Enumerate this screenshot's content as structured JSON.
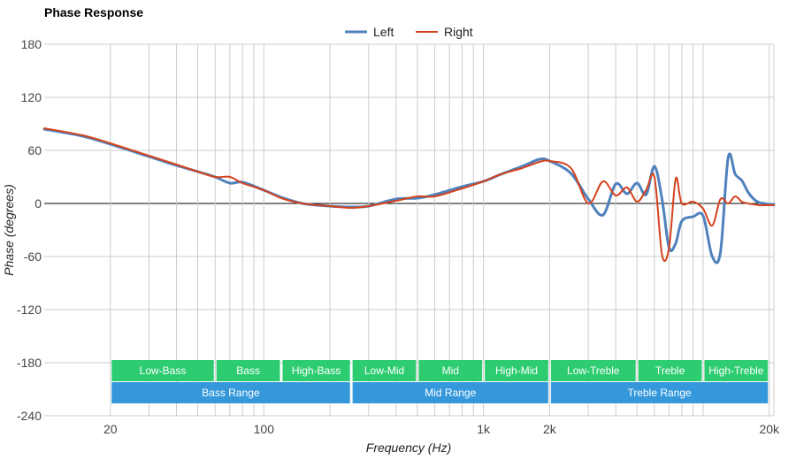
{
  "chart_data": {
    "type": "line",
    "title": "Phase Response",
    "xlabel": "Frequency (Hz)",
    "ylabel": "Phase (degrees)",
    "x_scale": "log",
    "xlim": [
      10,
      21000
    ],
    "ylim": [
      -240,
      180
    ],
    "x_ticks": [
      {
        "value": 20,
        "label": "20"
      },
      {
        "value": 100,
        "label": "100"
      },
      {
        "value": 1000,
        "label": "1k"
      },
      {
        "value": 2000,
        "label": "2k"
      },
      {
        "value": 20000,
        "label": "20k"
      }
    ],
    "y_ticks": [
      {
        "value": 180,
        "label": "180"
      },
      {
        "value": 120,
        "label": "120"
      },
      {
        "value": 60,
        "label": "60"
      },
      {
        "value": 0,
        "label": "0"
      },
      {
        "value": -60,
        "label": "-60"
      },
      {
        "value": -120,
        "label": "-120"
      },
      {
        "value": -180,
        "label": "-180"
      },
      {
        "value": -240,
        "label": "-240"
      }
    ],
    "grid": true,
    "legend_position": "top-center",
    "series": [
      {
        "name": "Left",
        "color": "#4f81bd",
        "x": [
          10,
          15,
          20,
          30,
          40,
          50,
          60,
          70,
          80,
          100,
          120,
          150,
          200,
          250,
          300,
          400,
          500,
          600,
          800,
          1000,
          1200,
          1500,
          1800,
          2000,
          2500,
          3000,
          3500,
          4000,
          4500,
          5000,
          5500,
          6000,
          6500,
          7000,
          7500,
          8000,
          9000,
          10000,
          11000,
          12000,
          13000,
          14000,
          15000,
          16000,
          17000,
          18000,
          19000,
          20000,
          21000
        ],
        "y": [
          84,
          76,
          67,
          53,
          43,
          36,
          30,
          23,
          24,
          15,
          7,
          0,
          -3,
          -4,
          -3,
          5,
          6,
          10,
          19,
          25,
          33,
          42,
          50,
          48,
          34,
          5,
          -13,
          22,
          11,
          23,
          10,
          42,
          5,
          -50,
          -45,
          -20,
          -15,
          -14,
          -60,
          -55,
          52,
          33,
          26,
          13,
          5,
          1,
          0,
          -1,
          -1
        ],
        "x_approx": true
      },
      {
        "name": "Right",
        "color": "#d4431d",
        "x": [
          10,
          15,
          20,
          30,
          40,
          50,
          60,
          70,
          80,
          100,
          120,
          150,
          200,
          250,
          300,
          400,
          500,
          600,
          800,
          1000,
          1200,
          1500,
          1800,
          2000,
          2500,
          3000,
          3500,
          4000,
          4500,
          5000,
          5500,
          6000,
          6500,
          7000,
          7500,
          8000,
          9000,
          10000,
          11000,
          12000,
          13000,
          14000,
          15000,
          16000,
          17000,
          18000,
          19000,
          20000,
          21000
        ],
        "y": [
          85,
          77,
          68,
          54,
          44,
          36,
          30,
          30,
          23,
          15,
          6,
          0,
          -3,
          -5,
          -3,
          3,
          8,
          8,
          17,
          25,
          33,
          40,
          47,
          48,
          40,
          0,
          25,
          9,
          18,
          2,
          15,
          30,
          -58,
          -50,
          28,
          0,
          2,
          -6,
          -25,
          5,
          0,
          8,
          2,
          0,
          -1,
          -2,
          -2,
          -2,
          -2
        ],
        "x_approx": true
      }
    ],
    "bands": {
      "fine": [
        {
          "label": "Low-Bass",
          "from": 20,
          "to": 60
        },
        {
          "label": "Bass",
          "from": 60,
          "to": 120
        },
        {
          "label": "High-Bass",
          "from": 120,
          "to": 250
        },
        {
          "label": "Low-Mid",
          "from": 250,
          "to": 500
        },
        {
          "label": "Mid",
          "from": 500,
          "to": 1000
        },
        {
          "label": "High-Mid",
          "from": 1000,
          "to": 2000
        },
        {
          "label": "Low-Treble",
          "from": 2000,
          "to": 5000
        },
        {
          "label": "Treble",
          "from": 5000,
          "to": 10000
        },
        {
          "label": "High-Treble",
          "from": 10000,
          "to": 20000
        }
      ],
      "ranges": [
        {
          "label": "Bass Range",
          "from": 20,
          "to": 250
        },
        {
          "label": "Mid Range",
          "from": 250,
          "to": 2000
        },
        {
          "label": "Treble Range",
          "from": 2000,
          "to": 20000
        }
      ],
      "fine_color": "#2ecc71",
      "range_color": "#3498db"
    }
  }
}
